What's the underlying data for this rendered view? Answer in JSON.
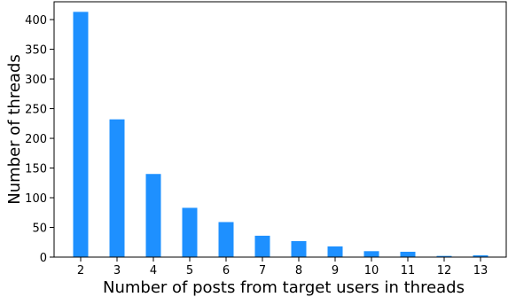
{
  "chart_data": {
    "type": "bar",
    "title": "",
    "xlabel": "Number of posts from target users in threads",
    "ylabel": "Number of threads",
    "categories": [
      "2",
      "3",
      "4",
      "5",
      "6",
      "7",
      "8",
      "9",
      "10",
      "11",
      "12",
      "13"
    ],
    "values": [
      413,
      232,
      140,
      83,
      59,
      36,
      27,
      18,
      10,
      9,
      2,
      3
    ],
    "ylim": [
      0,
      430
    ],
    "yticks": [
      0,
      50,
      100,
      150,
      200,
      250,
      300,
      350,
      400
    ],
    "grid": false,
    "legend": "none",
    "bar_color": "#1e90ff"
  }
}
